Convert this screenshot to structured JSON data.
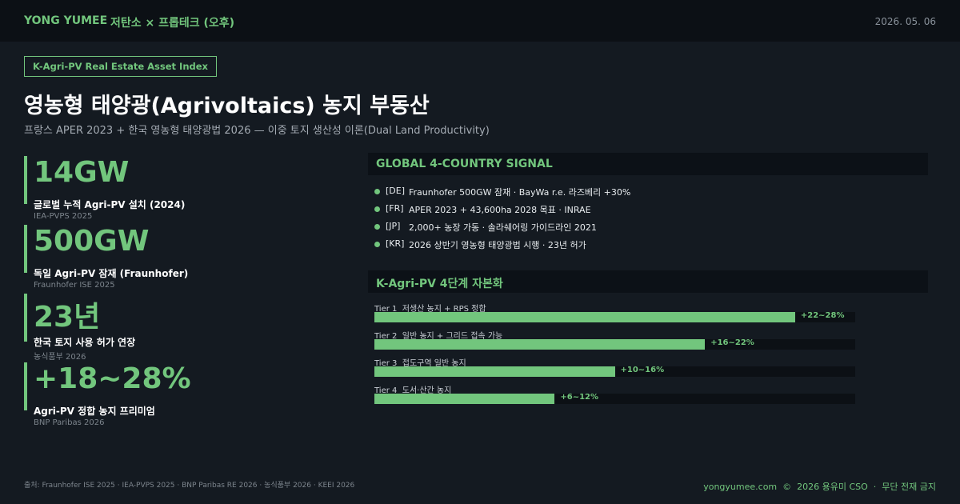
{
  "header": {
    "brand": "YONG YUMEE",
    "separator": "·",
    "program": "저탄소 × 프롭테크 (오후)",
    "date": "2026. 05. 06"
  },
  "badge": "K-Agri-PV Real Estate Asset Index",
  "title": "영농형 태양광(Agrivoltaics) 농지 부동산",
  "subtitle": "프랑스 APER 2023 + 한국 영농형 태양광법 2026 — 이중 토지 생산성 이론(Dual Land Productivity)",
  "stats": [
    {
      "value": "14GW",
      "label": "글로벌 누적 Agri-PV 설치 (2024)",
      "source": "IEA-PVPS 2025"
    },
    {
      "value": "500GW",
      "label": "독일 Agri-PV 잠재 (Fraunhofer)",
      "source": "Fraunhofer ISE 2025"
    },
    {
      "value": "23년",
      "label": "한국 토지 사용 허가 연장",
      "source": "농식품부 2026"
    },
    {
      "value": "+18~28%",
      "label": "Agri-PV 정합 농지 프리미엄",
      "source": "BNP Paribas 2026"
    }
  ],
  "signal": {
    "title": "GLOBAL 4-COUNTRY SIGNAL",
    "items": [
      {
        "code": "[DE]",
        "text": "Fraunhofer 500GW 잠재 · BayWa r.e. 라즈베리 +30%"
      },
      {
        "code": "[FR]",
        "text": "APER 2023 + 43,600ha 2028 목표 · INRAE"
      },
      {
        "code": "[JP]",
        "text": "2,000+ 농장 가동 · 솔라쉐어링 가이드라인 2021"
      },
      {
        "code": "[KR]",
        "text": "2026 상반기 영농형 태양광법 시행 · 23년 허가"
      }
    ]
  },
  "chart_data": {
    "type": "bar",
    "title": "K-Agri-PV 4단계 자본화",
    "categories": [
      "Tier 1  저생산 농지 + RPS 정합",
      "Tier 2  일반 농지 + 그리드 접속 가능",
      "Tier 3  접도구역 일반 농지",
      "Tier 4  도서·산간 농지"
    ],
    "values": [
      [
        22,
        28
      ],
      [
        16,
        22
      ],
      [
        10,
        16
      ],
      [
        6,
        12
      ]
    ],
    "value_labels": [
      "+22~28%",
      "+16~22%",
      "+10~16%",
      "+6~12%"
    ],
    "color": "#72c67d",
    "xlim": [
      0,
      32
    ]
  },
  "footer": {
    "sources": "출처: Fraunhofer ISE 2025 · IEA-PVPS 2025 · BNP Paribas RE 2026 · 농식품부 2026 · KEEI 2026",
    "site": "yongyumee.com  ©  2026 용유미 CSO  ·  무단 전재 금지"
  }
}
